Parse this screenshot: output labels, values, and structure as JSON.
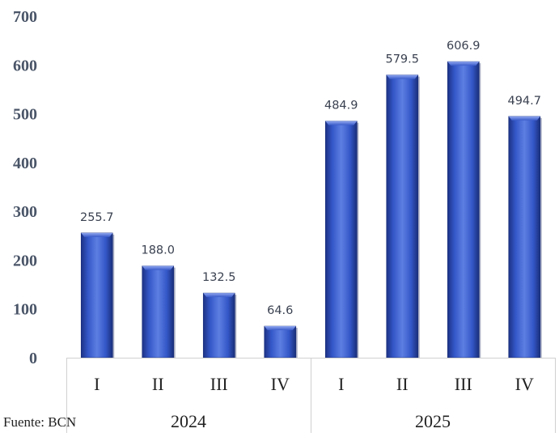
{
  "chart_data": {
    "type": "bar",
    "categories": [
      "I",
      "II",
      "III",
      "IV",
      "I",
      "II",
      "III",
      "IV"
    ],
    "groups": [
      {
        "label": "2024",
        "categories": [
          "I",
          "II",
          "III",
          "IV"
        ]
      },
      {
        "label": "2025",
        "categories": [
          "I",
          "II",
          "III",
          "IV"
        ]
      }
    ],
    "values": [
      255.7,
      188.0,
      132.5,
      64.6,
      484.9,
      579.5,
      606.9,
      494.7
    ],
    "value_labels": [
      "255.7",
      "188.0",
      "132.5",
      "64.6",
      "484.9",
      "579.5",
      "606.9",
      "494.7"
    ],
    "ylim": [
      0,
      700
    ],
    "yticks": [
      "0",
      "100",
      "200",
      "300",
      "400",
      "500",
      "600",
      "700"
    ],
    "grid": false,
    "bar_color": "#2f4eb8",
    "bar_highlight": "#5c7ce0",
    "bar_shadow": "#1a2f7a"
  },
  "source": "Fuente: BCN"
}
